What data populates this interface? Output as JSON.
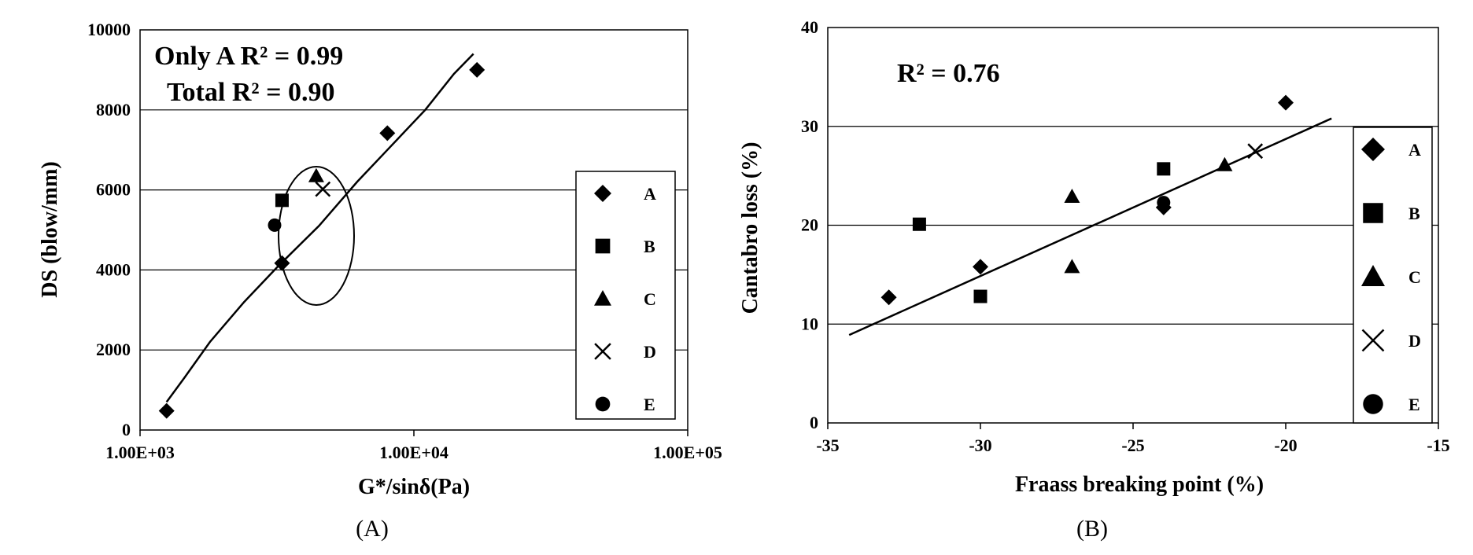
{
  "chart_data": [
    {
      "id": "A",
      "type": "scatter",
      "caption": "(A)",
      "xlabel": "G*/sinδ(Pa)",
      "ylabel": "DS (blow/mm)",
      "xscale": "log",
      "xlim": [
        1000,
        100000
      ],
      "ylim": [
        0,
        10000
      ],
      "xticks": [
        1000,
        10000,
        100000
      ],
      "xtick_labels": [
        "1.00E+03",
        "1.00E+04",
        "1.00E+05"
      ],
      "yticks": [
        0,
        2000,
        4000,
        6000,
        8000,
        10000
      ],
      "ytick_labels": [
        "0",
        "2000",
        "4000",
        "6000",
        "8000",
        "10000"
      ],
      "grid": "horizontal",
      "legend_position": "right",
      "annotations": [
        {
          "text": "Only A R² = 0.99"
        },
        {
          "text": "Total R² = 0.90"
        }
      ],
      "highlight_ellipse": {
        "center": [
          4000,
          5200
        ],
        "note": "ellipse around cluster of points"
      },
      "series": [
        {
          "name": "A",
          "marker": "diamond",
          "points": [
            [
              1250,
              480
            ],
            [
              3300,
              4170
            ],
            [
              8000,
              7420
            ],
            [
              17000,
              9000
            ]
          ]
        },
        {
          "name": "B",
          "marker": "square",
          "points": [
            [
              3300,
              5740
            ]
          ]
        },
        {
          "name": "C",
          "marker": "triangle",
          "points": [
            [
              4400,
              6350
            ]
          ]
        },
        {
          "name": "D",
          "marker": "cross",
          "points": [
            [
              4650,
              6020
            ]
          ]
        },
        {
          "name": "E",
          "marker": "circle",
          "points": [
            [
              3100,
              5120
            ]
          ]
        }
      ],
      "trendline": [
        [
          1250,
          700
        ],
        [
          1450,
          1300
        ],
        [
          1800,
          2200
        ],
        [
          2400,
          3200
        ],
        [
          3200,
          4100
        ],
        [
          4500,
          5100
        ],
        [
          6200,
          6200
        ],
        [
          8000,
          7000
        ],
        [
          11000,
          8000
        ],
        [
          14000,
          8900
        ],
        [
          16500,
          9400
        ]
      ]
    },
    {
      "id": "B",
      "type": "scatter",
      "caption": "(B)",
      "xlabel": "Fraass breaking point (%)",
      "ylabel": "Cantabro loss (%)",
      "xlim": [
        -35,
        -15
      ],
      "ylim": [
        0,
        40
      ],
      "xticks": [
        -35,
        -30,
        -25,
        -20,
        -15
      ],
      "xtick_labels": [
        "-35",
        "-30",
        "-25",
        "-20",
        "-15"
      ],
      "yticks": [
        0,
        10,
        20,
        30,
        40
      ],
      "ytick_labels": [
        "0",
        "10",
        "20",
        "30",
        "40"
      ],
      "grid": "horizontal",
      "legend_position": "right",
      "annotations": [
        {
          "text": "R² = 0.76"
        }
      ],
      "series": [
        {
          "name": "A",
          "marker": "diamond",
          "points": [
            [
              -33,
              12.7
            ],
            [
              -30,
              15.8
            ],
            [
              -24,
              21.8
            ],
            [
              -20,
              32.4
            ]
          ]
        },
        {
          "name": "B",
          "marker": "square",
          "points": [
            [
              -32,
              20.1
            ],
            [
              -30,
              12.8
            ],
            [
              -24,
              25.7
            ]
          ]
        },
        {
          "name": "C",
          "marker": "triangle",
          "points": [
            [
              -27,
              22.9
            ],
            [
              -27,
              15.8
            ],
            [
              -22,
              26.1
            ]
          ]
        },
        {
          "name": "D",
          "marker": "cross",
          "points": [
            [
              -21,
              27.5
            ]
          ]
        },
        {
          "name": "E",
          "marker": "circle",
          "points": [
            [
              -24,
              22.3
            ]
          ]
        }
      ],
      "trendline": [
        [
          -34.3,
          8.9
        ],
        [
          -18.5,
          30.8
        ]
      ]
    }
  ]
}
